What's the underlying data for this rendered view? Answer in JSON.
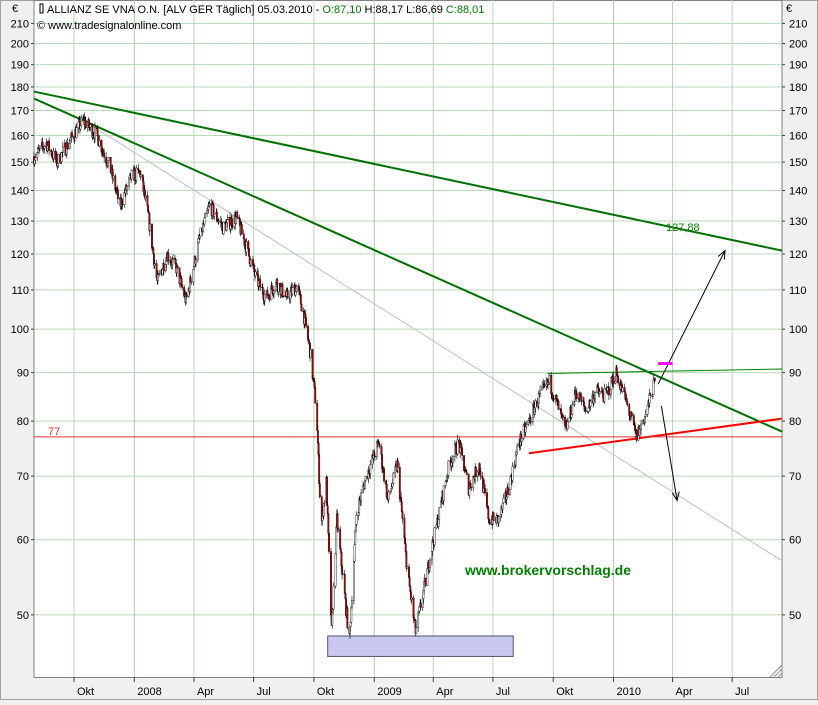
{
  "header": {
    "instrument": "ALLIANZ SE VNA O.N. [ALV GER  Täglich] 05.03.2010 - ",
    "open": "O:87,10",
    "hlc": " H:88,17 L:86,69 ",
    "close": "C:88,01",
    "source": "www.tradesignalonline.com",
    "copyright_symbol": "©"
  },
  "axes": {
    "currency_left": "€",
    "currency_right": "€"
  },
  "watermark": "www.brokervorschlag.de",
  "annotations": {
    "level_77": "77",
    "target_label": "127,88"
  },
  "colors": {
    "up_line": "#007000",
    "support_line": "#ff0000",
    "horizontal_77": "#e03030",
    "candle_up": "#ffffff",
    "candle_down": "#c00000",
    "grid": "#b8d8b8",
    "zone_fill": "#c8c8f0",
    "magenta_marker": "#ff00ff"
  },
  "chart_data": {
    "type": "candlestick",
    "title": "ALLIANZ SE VNA O.N. [ALV GER  Täglich] 05.03.2010",
    "y_scale": "log",
    "ylim": [
      43,
      218
    ],
    "y_ticks": [
      50,
      60,
      70,
      80,
      90,
      100,
      110,
      120,
      130,
      140,
      150,
      160,
      170,
      180,
      190,
      200,
      210
    ],
    "x_range": [
      "2007-08-01",
      "2010-09-15"
    ],
    "x_ticks": [
      {
        "date": "2007-10-01",
        "label": "Okt"
      },
      {
        "date": "2008-01-01",
        "label": "2008"
      },
      {
        "date": "2008-04-01",
        "label": "Apr"
      },
      {
        "date": "2008-07-01",
        "label": "Jul"
      },
      {
        "date": "2008-10-01",
        "label": "Okt"
      },
      {
        "date": "2009-01-01",
        "label": "2009"
      },
      {
        "date": "2009-04-01",
        "label": "Apr"
      },
      {
        "date": "2009-07-01",
        "label": "Jul"
      },
      {
        "date": "2009-10-01",
        "label": "Okt"
      },
      {
        "date": "2010-01-01",
        "label": "2010"
      },
      {
        "date": "2010-04-01",
        "label": "Apr"
      },
      {
        "date": "2010-07-01",
        "label": "Jul"
      }
    ],
    "price_path": [
      [
        "2007-08-01",
        152
      ],
      [
        "2007-08-20",
        157
      ],
      [
        "2007-09-05",
        150
      ],
      [
        "2007-09-25",
        158
      ],
      [
        "2007-10-15",
        166
      ],
      [
        "2007-11-05",
        160
      ],
      [
        "2007-11-25",
        148
      ],
      [
        "2007-12-10",
        135
      ],
      [
        "2007-12-28",
        145
      ],
      [
        "2008-01-10",
        146
      ],
      [
        "2008-01-22",
        132
      ],
      [
        "2008-02-05",
        112
      ],
      [
        "2008-02-20",
        120
      ],
      [
        "2008-03-05",
        116
      ],
      [
        "2008-03-20",
        107
      ],
      [
        "2008-04-10",
        125
      ],
      [
        "2008-04-25",
        135
      ],
      [
        "2008-05-15",
        128
      ],
      [
        "2008-06-05",
        131
      ],
      [
        "2008-06-20",
        122
      ],
      [
        "2008-07-05",
        113
      ],
      [
        "2008-07-20",
        108
      ],
      [
        "2008-08-05",
        112
      ],
      [
        "2008-08-20",
        108
      ],
      [
        "2008-09-05",
        111
      ],
      [
        "2008-09-15",
        104
      ],
      [
        "2008-09-25",
        95
      ],
      [
        "2008-10-05",
        82
      ],
      [
        "2008-10-12",
        62
      ],
      [
        "2008-10-20",
        69
      ],
      [
        "2008-10-28",
        48
      ],
      [
        "2008-11-05",
        63
      ],
      [
        "2008-11-15",
        54
      ],
      [
        "2008-11-24",
        47
      ],
      [
        "2008-12-05",
        64
      ],
      [
        "2008-12-20",
        70
      ],
      [
        "2009-01-08",
        76
      ],
      [
        "2009-01-22",
        66
      ],
      [
        "2009-02-05",
        72
      ],
      [
        "2009-02-20",
        56
      ],
      [
        "2009-03-05",
        48
      ],
      [
        "2009-03-15",
        52
      ],
      [
        "2009-03-28",
        58
      ],
      [
        "2009-04-10",
        64
      ],
      [
        "2009-04-25",
        72
      ],
      [
        "2009-05-10",
        76
      ],
      [
        "2009-05-25",
        68
      ],
      [
        "2009-06-10",
        72
      ],
      [
        "2009-06-25",
        63
      ],
      [
        "2009-07-10",
        63
      ],
      [
        "2009-07-25",
        68
      ],
      [
        "2009-08-10",
        76
      ],
      [
        "2009-08-25",
        80
      ],
      [
        "2009-09-10",
        85
      ],
      [
        "2009-09-25",
        88
      ],
      [
        "2009-10-08",
        83
      ],
      [
        "2009-10-20",
        78
      ],
      [
        "2009-11-05",
        86
      ],
      [
        "2009-11-20",
        82
      ],
      [
        "2009-12-05",
        86
      ],
      [
        "2009-12-20",
        85
      ],
      [
        "2010-01-05",
        90
      ],
      [
        "2010-01-20",
        84
      ],
      [
        "2010-02-05",
        77
      ],
      [
        "2010-02-18",
        81
      ],
      [
        "2010-03-05",
        88
      ]
    ],
    "trendlines": [
      {
        "kind": "upper-resistance",
        "color": "#007000",
        "from": [
          "2007-08-01",
          178
        ],
        "to": [
          "2010-09-15",
          121
        ]
      },
      {
        "kind": "main-downtrend",
        "color": "#007000",
        "from": [
          "2007-08-01",
          175
        ],
        "to": [
          "2010-09-15",
          78
        ]
      },
      {
        "kind": "thin-downtrend",
        "color": "#c0c0c0",
        "from": [
          "2007-10-15",
          166
        ],
        "to": [
          "2010-09-15",
          57
        ]
      },
      {
        "kind": "support",
        "color": "#ff0000",
        "from": [
          "2009-08-25",
          74
        ],
        "to": [
          "2010-09-15",
          80.5
        ]
      },
      {
        "kind": "neckline",
        "color": "#008000",
        "from": [
          "2009-09-22",
          89.8
        ],
        "to": [
          "2010-09-15",
          90.8
        ]
      },
      {
        "kind": "horizontal",
        "color": "#e03030",
        "from": [
          "2007-08-01",
          77
        ],
        "to": [
          "2010-09-15",
          77
        ]
      }
    ],
    "arrows": [
      {
        "direction": "up",
        "from": [
          "2010-03-10",
          87.5
        ],
        "to": [
          "2010-06-20",
          121
        ]
      },
      {
        "direction": "down",
        "from": [
          "2010-03-15",
          83
        ],
        "to": [
          "2010-04-08",
          66
        ]
      }
    ],
    "marker": {
      "color": "#ff00ff",
      "date_from": "2010-03-10",
      "date_to": "2010-04-01",
      "value": 92
    },
    "zone": {
      "date_from": "2008-10-22",
      "date_to": "2009-08-01",
      "y_from": 45.2,
      "y_to": 47.5
    }
  }
}
